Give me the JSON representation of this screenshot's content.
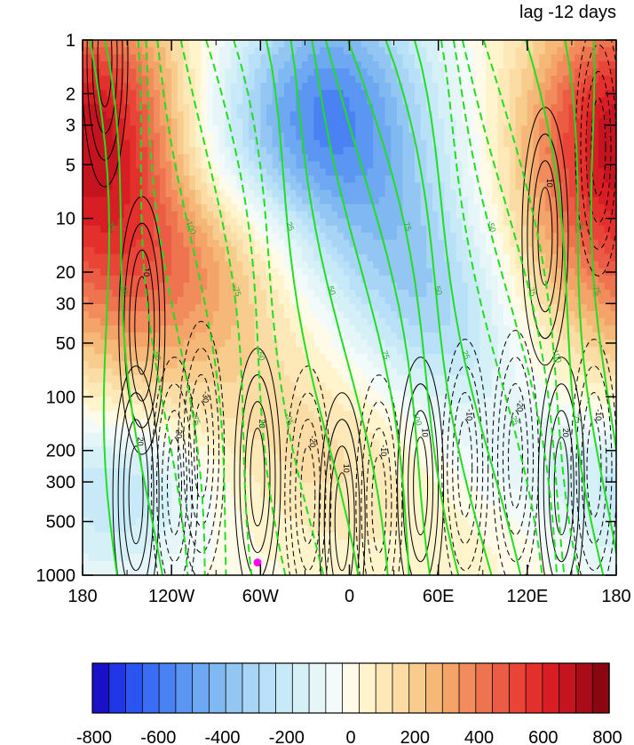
{
  "chart_data": {
    "type": "heatmap",
    "title_right": "lag -12 days",
    "x_ticks": [
      "180",
      "120W",
      "60W",
      "0",
      "60E",
      "120E",
      "180"
    ],
    "x_tick_lons": [
      -180,
      -120,
      -60,
      0,
      60,
      120,
      180
    ],
    "xlim": [
      -180,
      180
    ],
    "y_ticks": [
      "1",
      "2",
      "3",
      "5",
      "10",
      "20",
      "30",
      "50",
      "100",
      "200",
      "300",
      "500",
      "1000"
    ],
    "y_tick_values": [
      1,
      2,
      3,
      5,
      10,
      20,
      30,
      50,
      100,
      200,
      300,
      500,
      1000
    ],
    "ylim": [
      1000,
      1
    ],
    "y_scale": "log",
    "y_inverted": true,
    "marker": {
      "lon": -62,
      "p": 850,
      "color": "#ff00ff"
    },
    "colorbar": {
      "min": -800,
      "max": 800,
      "step": 50,
      "tick_labels": [
        "-800",
        "-600",
        "-400",
        "-200",
        "0",
        "200",
        "400",
        "600",
        "800"
      ],
      "colors": [
        "#1a10c8",
        "#1f37e6",
        "#2a55f0",
        "#3a6cf4",
        "#4a82f4",
        "#5a96f2",
        "#6ea8f2",
        "#80b8f2",
        "#94c6f4",
        "#a8d4f6",
        "#b8e0f8",
        "#c8eaf8",
        "#d6f0f8",
        "#e6f6f8",
        "#f2fafa",
        "#fffbe8",
        "#fff4cc",
        "#fde8b8",
        "#fadca4",
        "#f8cc8c",
        "#f6b878",
        "#f4a468",
        "#f28c5c",
        "#ee7450",
        "#ec5c44",
        "#e84438",
        "#e4302c",
        "#d81e24",
        "#c41420",
        "#a80c18",
        "#8a0610"
      ]
    },
    "fill_field": {
      "description_units": "shaded anomaly, colorbar units",
      "features": [
        {
          "lon": -155,
          "logp": 0.5,
          "amp": 440,
          "sx": 40,
          "sy": 0.55
        },
        {
          "lon": -150,
          "logp": 1.4,
          "amp": 220,
          "sx": 60,
          "sy": 0.45
        },
        {
          "lon": -95,
          "logp": 1.2,
          "amp": 170,
          "sx": 50,
          "sy": 0.35
        },
        {
          "lon": -50,
          "logp": 1.9,
          "amp": 110,
          "sx": 70,
          "sy": 0.35
        },
        {
          "lon": -5,
          "logp": 2.4,
          "amp": 110,
          "sx": 60,
          "sy": 0.3
        },
        {
          "lon": 40,
          "logp": 2.8,
          "amp": 40,
          "sx": 60,
          "sy": 0.3
        },
        {
          "lon": 160,
          "logp": 0.5,
          "amp": 340,
          "sx": 40,
          "sy": 0.5
        },
        {
          "lon": 120,
          "logp": 1.2,
          "amp": 90,
          "sx": 40,
          "sy": 0.4
        },
        {
          "lon": -10,
          "logp": 0.3,
          "amp": -440,
          "sx": 45,
          "sy": 0.5
        },
        {
          "lon": 25,
          "logp": 1.1,
          "amp": -260,
          "sx": 50,
          "sy": 0.5
        },
        {
          "lon": 70,
          "logp": 1.6,
          "amp": -220,
          "sx": 40,
          "sy": 0.4
        },
        {
          "lon": -75,
          "logp": 0.6,
          "amp": -160,
          "sx": 50,
          "sy": 0.4
        },
        {
          "lon": -145,
          "logp": 2.5,
          "amp": -170,
          "sx": 40,
          "sy": 0.25
        },
        {
          "lon": 130,
          "logp": 2.4,
          "amp": -140,
          "sx": 60,
          "sy": 0.3
        },
        {
          "lon": -165,
          "logp": 2.9,
          "amp": -80,
          "sx": 40,
          "sy": 0.2
        },
        {
          "lon": 95,
          "logp": 2.7,
          "amp": 40,
          "sx": 40,
          "sy": 0.3
        }
      ]
    },
    "black_contours": {
      "label_values": [
        "10",
        "20",
        "30",
        "-10",
        "-20",
        "-30"
      ],
      "cells": [
        {
          "lon": -144,
          "logp": 2.55,
          "sign": 1,
          "label": "20"
        },
        {
          "lon": -118,
          "logp": 2.5,
          "sign": -1,
          "label": "-20"
        },
        {
          "lon": -100,
          "logp": 2.3,
          "sign": -1,
          "label": "-30"
        },
        {
          "lon": -62,
          "logp": 2.45,
          "sign": 1,
          "label": "20"
        },
        {
          "lon": -28,
          "logp": 2.55,
          "sign": -1,
          "label": "-20"
        },
        {
          "lon": -5,
          "logp": 2.7,
          "sign": 1,
          "label": "10"
        },
        {
          "lon": 20,
          "logp": 2.6,
          "sign": -1,
          "label": "-10"
        },
        {
          "lon": 48,
          "logp": 2.5,
          "sign": 1,
          "label": "10"
        },
        {
          "lon": 78,
          "logp": 2.4,
          "sign": -1,
          "label": "-10"
        },
        {
          "lon": 112,
          "logp": 2.35,
          "sign": -1,
          "label": "-20"
        },
        {
          "lon": 143,
          "logp": 2.5,
          "sign": 1,
          "label": "20"
        },
        {
          "lon": 165,
          "logp": 2.4,
          "sign": -1,
          "label": "-10"
        },
        {
          "lon": 132,
          "logp": 1.1,
          "sign": 1,
          "label": "10"
        },
        {
          "lon": -140,
          "logp": 1.6,
          "sign": 1,
          "label": "10"
        },
        {
          "lon": 168,
          "logp": 0.6,
          "sign": -1,
          "label": ""
        },
        {
          "lon": -165,
          "logp": 0.1,
          "sign": 1,
          "label": ""
        }
      ]
    },
    "green_contours": {
      "solid_labels": [
        "25",
        "50",
        "75",
        "100"
      ],
      "dashed_labels": [
        "-25",
        "-50",
        "-75",
        "-100"
      ],
      "lines": [
        {
          "dash": false,
          "label": "25",
          "top_lon": -175,
          "bottom_lon": -155
        },
        {
          "dash": false,
          "label": "50",
          "top_lon": -170,
          "bottom_lon": -130
        },
        {
          "dash": true,
          "label": "-50",
          "top_lon": -148,
          "bottom_lon": -115
        },
        {
          "dash": true,
          "label": "-75",
          "top_lon": -138,
          "bottom_lon": -100
        },
        {
          "dash": true,
          "label": "-100",
          "top_lon": -125,
          "bottom_lon": -80
        },
        {
          "dash": true,
          "label": "-75",
          "top_lon": -108,
          "bottom_lon": -60
        },
        {
          "dash": true,
          "label": "-50",
          "top_lon": -95,
          "bottom_lon": -40
        },
        {
          "dash": true,
          "label": "-25",
          "top_lon": -82,
          "bottom_lon": -20
        },
        {
          "dash": false,
          "label": "25",
          "top_lon": -62,
          "bottom_lon": 0
        },
        {
          "dash": false,
          "label": "50",
          "top_lon": -42,
          "bottom_lon": 22
        },
        {
          "dash": false,
          "label": "75",
          "top_lon": -22,
          "bottom_lon": 42
        },
        {
          "dash": false,
          "label": "100",
          "top_lon": -10,
          "bottom_lon": 60
        },
        {
          "dash": false,
          "label": "75",
          "top_lon": 2,
          "bottom_lon": 78
        },
        {
          "dash": false,
          "label": "50",
          "top_lon": 22,
          "bottom_lon": 95
        },
        {
          "dash": false,
          "label": "25",
          "top_lon": 38,
          "bottom_lon": 110
        },
        {
          "dash": true,
          "label": "-25",
          "top_lon": 58,
          "bottom_lon": 125
        },
        {
          "dash": true,
          "label": "-50",
          "top_lon": 72,
          "bottom_lon": 140
        },
        {
          "dash": true,
          "label": "-75",
          "top_lon": 82,
          "bottom_lon": 150
        },
        {
          "dash": true,
          "label": "-100",
          "top_lon": 95,
          "bottom_lon": 160
        },
        {
          "dash": false,
          "label": "25",
          "top_lon": 118,
          "bottom_lon": 172
        },
        {
          "dash": false,
          "label": "50",
          "top_lon": 140,
          "bottom_lon": 178
        },
        {
          "dash": false,
          "label": "75",
          "top_lon": 160,
          "bottom_lon": 182
        }
      ]
    }
  }
}
